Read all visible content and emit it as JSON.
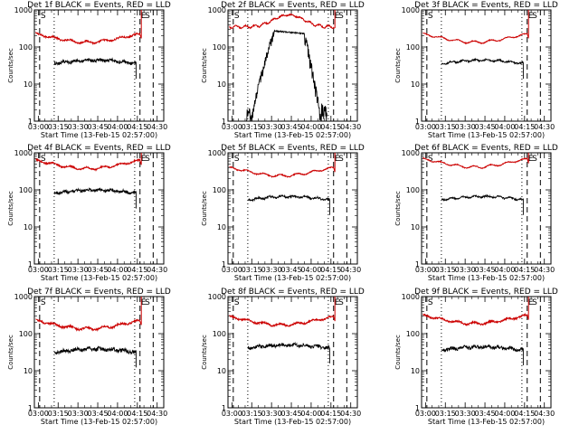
{
  "chart_data": {
    "type": "line",
    "layout": "3x3 grid of time-series panels",
    "y_scale": "log",
    "ylim": [
      1,
      1000
    ],
    "y_tick_labels": [
      "1",
      "10",
      "100",
      "1000"
    ],
    "x_tick_labels": [
      "03:00",
      "03:15",
      "03:30",
      "03:45",
      "04:00",
      "04:15",
      "04:30"
    ],
    "xlabel": "Start Time (13-Feb-15 02:57:00)",
    "ylabel": "Counts/sec",
    "colors": {
      "events": "#000000",
      "lld": "#cc0000"
    },
    "panels": [
      {
        "title": "Det 1f BLACK = Events, RED = LLD",
        "events_level": 40,
        "lld_level": 180,
        "lld_wave": "dip",
        "events_start": "03:12",
        "noise": 0.1
      },
      {
        "title": "Det 2f BLACK = Events, RED = LLD",
        "events_level": 50,
        "lld_level": 350,
        "lld_wave": "bump",
        "events_start": "03:11",
        "noise": 0.08,
        "events_profile": "flare",
        "flare": {
          "rise": [
            "03:15",
            "03:32"
          ],
          "plateau": [
            "03:32",
            "03:55"
          ],
          "decay": [
            "03:55",
            "04:08"
          ],
          "peak": 270
        }
      },
      {
        "title": "Det 3f BLACK = Events, RED = LLD",
        "events_level": 40,
        "lld_level": 180,
        "lld_wave": "dip",
        "events_start": "03:12",
        "noise": 0.05
      },
      {
        "title": "Det 4f BLACK = Events, RED = LLD",
        "events_level": 90,
        "lld_level": 500,
        "lld_wave": "dip",
        "events_start": "03:12",
        "noise": 0.09
      },
      {
        "title": "Det 5f BLACK = Events, RED = LLD",
        "events_level": 60,
        "lld_level": 320,
        "lld_wave": "dip",
        "events_start": "03:12",
        "noise": 0.06
      },
      {
        "title": "Det 6f BLACK = Events, RED = LLD",
        "events_level": 60,
        "lld_level": 550,
        "lld_wave": "dip",
        "events_start": "03:12",
        "noise": 0.05
      },
      {
        "title": "Det 7f BLACK = Events, RED = LLD",
        "events_level": 35,
        "lld_level": 180,
        "lld_wave": "dip",
        "events_start": "03:12",
        "noise": 0.11
      },
      {
        "title": "Det 8f BLACK = Events, RED = LLD",
        "events_level": 45,
        "lld_level": 230,
        "lld_wave": "dip",
        "events_start": "03:12",
        "noise": 0.1
      },
      {
        "title": "Det 9f BLACK = Events, RED = LLD",
        "events_level": 40,
        "lld_level": 250,
        "lld_wave": "dip",
        "events_start": "03:12",
        "noise": 0.1
      }
    ],
    "markers": {
      "dashed_times": [
        "03:01",
        "04:17",
        "04:27"
      ],
      "dotted_times": [
        "03:12",
        "04:13"
      ],
      "letters": [
        {
          "time": "03:01",
          "text": "S"
        },
        {
          "time": "04:17",
          "text": "E"
        },
        {
          "time": "04:20",
          "text": "S"
        }
      ]
    },
    "lld_end": "04:17",
    "lld_jump": "04:18"
  }
}
